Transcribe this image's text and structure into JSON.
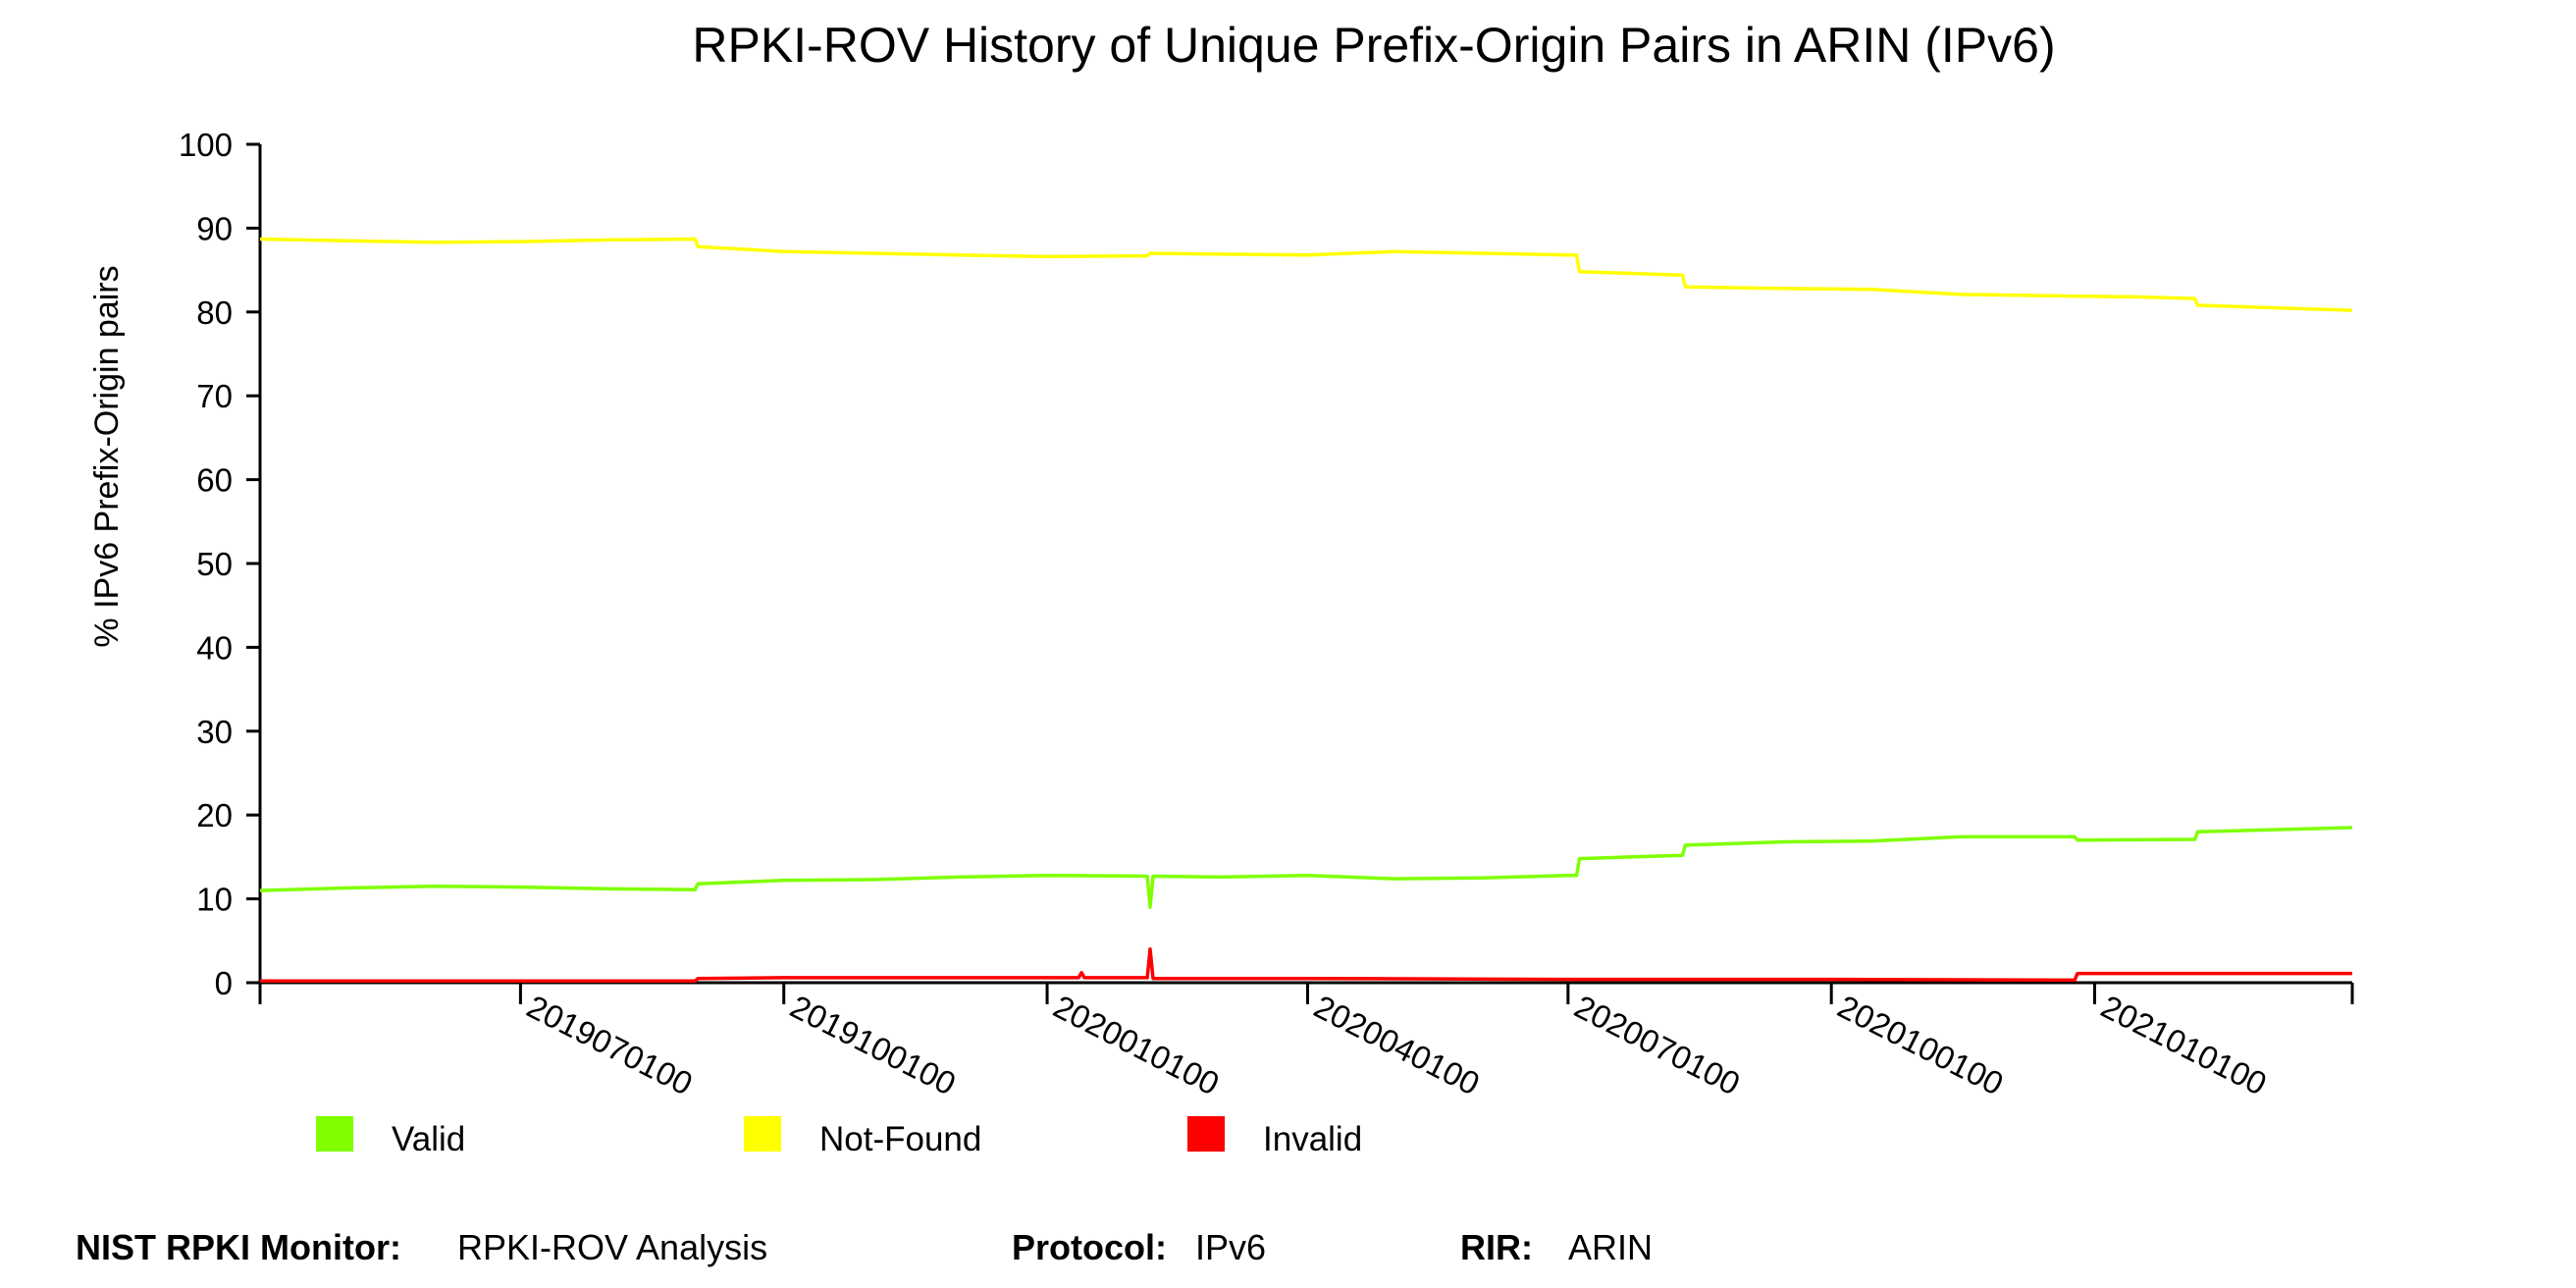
{
  "chart_data": {
    "type": "line",
    "title": "RPKI-ROV History of Unique Prefix-Origin Pairs in ARIN (IPv6)",
    "ylabel": "% IPv6 Prefix-Origin pairs",
    "xlabel": "",
    "ylim": [
      0,
      100
    ],
    "yticks": [
      0,
      10,
      20,
      30,
      40,
      50,
      60,
      70,
      80,
      90,
      100
    ],
    "xlim": [
      "2019-04-01",
      "2021-04-01"
    ],
    "xticks": [
      {
        "date": "2019-07-01",
        "label": "2019070100"
      },
      {
        "date": "2019-10-01",
        "label": "2019100100"
      },
      {
        "date": "2020-01-01",
        "label": "2020010100"
      },
      {
        "date": "2020-04-01",
        "label": "2020040100"
      },
      {
        "date": "2020-07-01",
        "label": "2020070100"
      },
      {
        "date": "2020-10-01",
        "label": "2020100100"
      },
      {
        "date": "2021-01-01",
        "label": "2021010100"
      }
    ],
    "grid": false,
    "legend_position": "bottom",
    "series": [
      {
        "name": "Valid",
        "color": "#7fff00",
        "points": [
          [
            "2019-04-01",
            11.0
          ],
          [
            "2019-05-01",
            11.3
          ],
          [
            "2019-06-01",
            11.5
          ],
          [
            "2019-07-01",
            11.4
          ],
          [
            "2019-08-01",
            11.2
          ],
          [
            "2019-08-31",
            11.1
          ],
          [
            "2019-09-01",
            11.8
          ],
          [
            "2019-10-01",
            12.2
          ],
          [
            "2019-11-01",
            12.3
          ],
          [
            "2019-12-01",
            12.6
          ],
          [
            "2020-01-01",
            12.8
          ],
          [
            "2020-02-05",
            12.7
          ],
          [
            "2020-02-06",
            9.0
          ],
          [
            "2020-02-07",
            12.7
          ],
          [
            "2020-03-01",
            12.6
          ],
          [
            "2020-04-01",
            12.8
          ],
          [
            "2020-05-01",
            12.4
          ],
          [
            "2020-06-01",
            12.5
          ],
          [
            "2020-07-01",
            12.8
          ],
          [
            "2020-07-04",
            12.8
          ],
          [
            "2020-07-05",
            14.8
          ],
          [
            "2020-08-10",
            15.2
          ],
          [
            "2020-08-11",
            16.4
          ],
          [
            "2020-09-15",
            16.8
          ],
          [
            "2020-10-15",
            16.9
          ],
          [
            "2020-11-15",
            17.4
          ],
          [
            "2020-12-25",
            17.4
          ],
          [
            "2020-12-26",
            17.0
          ],
          [
            "2021-02-05",
            17.1
          ],
          [
            "2021-02-06",
            18.0
          ],
          [
            "2021-04-01",
            18.5
          ]
        ]
      },
      {
        "name": "Not-Found",
        "color": "#ffff00",
        "points": [
          [
            "2019-04-01",
            88.7
          ],
          [
            "2019-05-01",
            88.5
          ],
          [
            "2019-06-01",
            88.3
          ],
          [
            "2019-07-01",
            88.4
          ],
          [
            "2019-08-01",
            88.6
          ],
          [
            "2019-08-31",
            88.7
          ],
          [
            "2019-09-01",
            87.8
          ],
          [
            "2019-10-01",
            87.2
          ],
          [
            "2019-11-01",
            87.0
          ],
          [
            "2019-12-01",
            86.8
          ],
          [
            "2020-01-01",
            86.6
          ],
          [
            "2020-02-05",
            86.7
          ],
          [
            "2020-02-06",
            87.0
          ],
          [
            "2020-03-01",
            86.9
          ],
          [
            "2020-04-01",
            86.8
          ],
          [
            "2020-05-01",
            87.2
          ],
          [
            "2020-06-01",
            87.0
          ],
          [
            "2020-07-01",
            86.8
          ],
          [
            "2020-07-04",
            86.8
          ],
          [
            "2020-07-05",
            84.8
          ],
          [
            "2020-08-10",
            84.4
          ],
          [
            "2020-08-11",
            83.0
          ],
          [
            "2020-09-15",
            82.8
          ],
          [
            "2020-10-15",
            82.7
          ],
          [
            "2020-11-15",
            82.1
          ],
          [
            "2020-12-25",
            81.9
          ],
          [
            "2021-01-15",
            81.8
          ],
          [
            "2021-02-05",
            81.6
          ],
          [
            "2021-02-06",
            80.8
          ],
          [
            "2021-04-01",
            80.2
          ]
        ]
      },
      {
        "name": "Invalid",
        "color": "#ff0000",
        "points": [
          [
            "2019-04-01",
            0.2
          ],
          [
            "2019-08-31",
            0.2
          ],
          [
            "2019-09-01",
            0.5
          ],
          [
            "2019-10-01",
            0.6
          ],
          [
            "2020-01-01",
            0.6
          ],
          [
            "2020-01-12",
            0.6
          ],
          [
            "2020-01-13",
            1.2
          ],
          [
            "2020-01-14",
            0.6
          ],
          [
            "2020-02-05",
            0.6
          ],
          [
            "2020-02-06",
            4.0
          ],
          [
            "2020-02-07",
            0.5
          ],
          [
            "2020-04-01",
            0.5
          ],
          [
            "2020-07-01",
            0.4
          ],
          [
            "2020-10-01",
            0.4
          ],
          [
            "2020-12-25",
            0.3
          ],
          [
            "2020-12-26",
            1.1
          ],
          [
            "2021-04-01",
            1.1
          ]
        ]
      }
    ]
  },
  "footer": {
    "monitor_key": "NIST RPKI Monitor:",
    "monitor_value": "RPKI-ROV Analysis",
    "protocol_key": "Protocol:",
    "protocol_value": "IPv6",
    "rir_key": "RIR:",
    "rir_value": "ARIN"
  }
}
